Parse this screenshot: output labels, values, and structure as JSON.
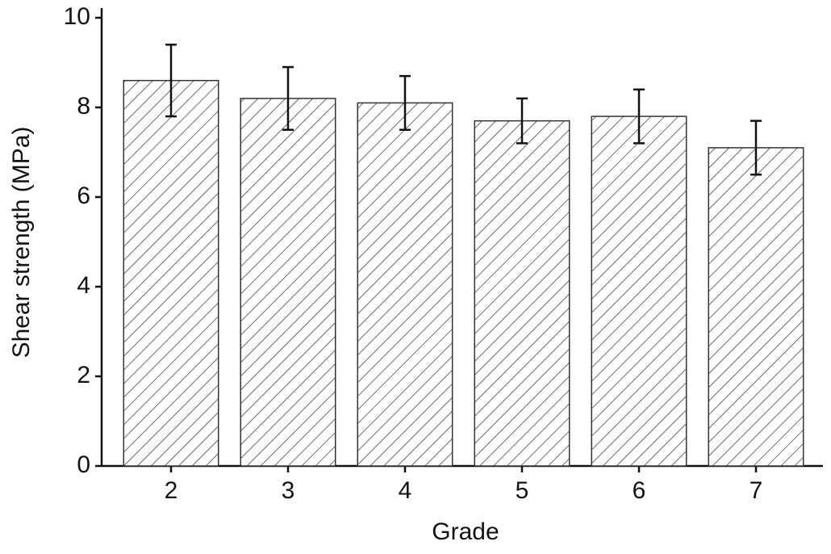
{
  "chart_data": {
    "type": "bar",
    "x_label": "Grade",
    "y_label": "Shear strength (MPa)",
    "categories": [
      "2",
      "3",
      "4",
      "5",
      "6",
      "7"
    ],
    "values": [
      8.6,
      8.2,
      8.1,
      7.7,
      7.8,
      7.1
    ],
    "errors": [
      0.8,
      0.7,
      0.6,
      0.5,
      0.6,
      0.6
    ],
    "color": "#333333",
    "ylim": [
      0,
      10
    ],
    "yticks": [
      0,
      2,
      4,
      6,
      8,
      10
    ],
    "grid": false
  }
}
